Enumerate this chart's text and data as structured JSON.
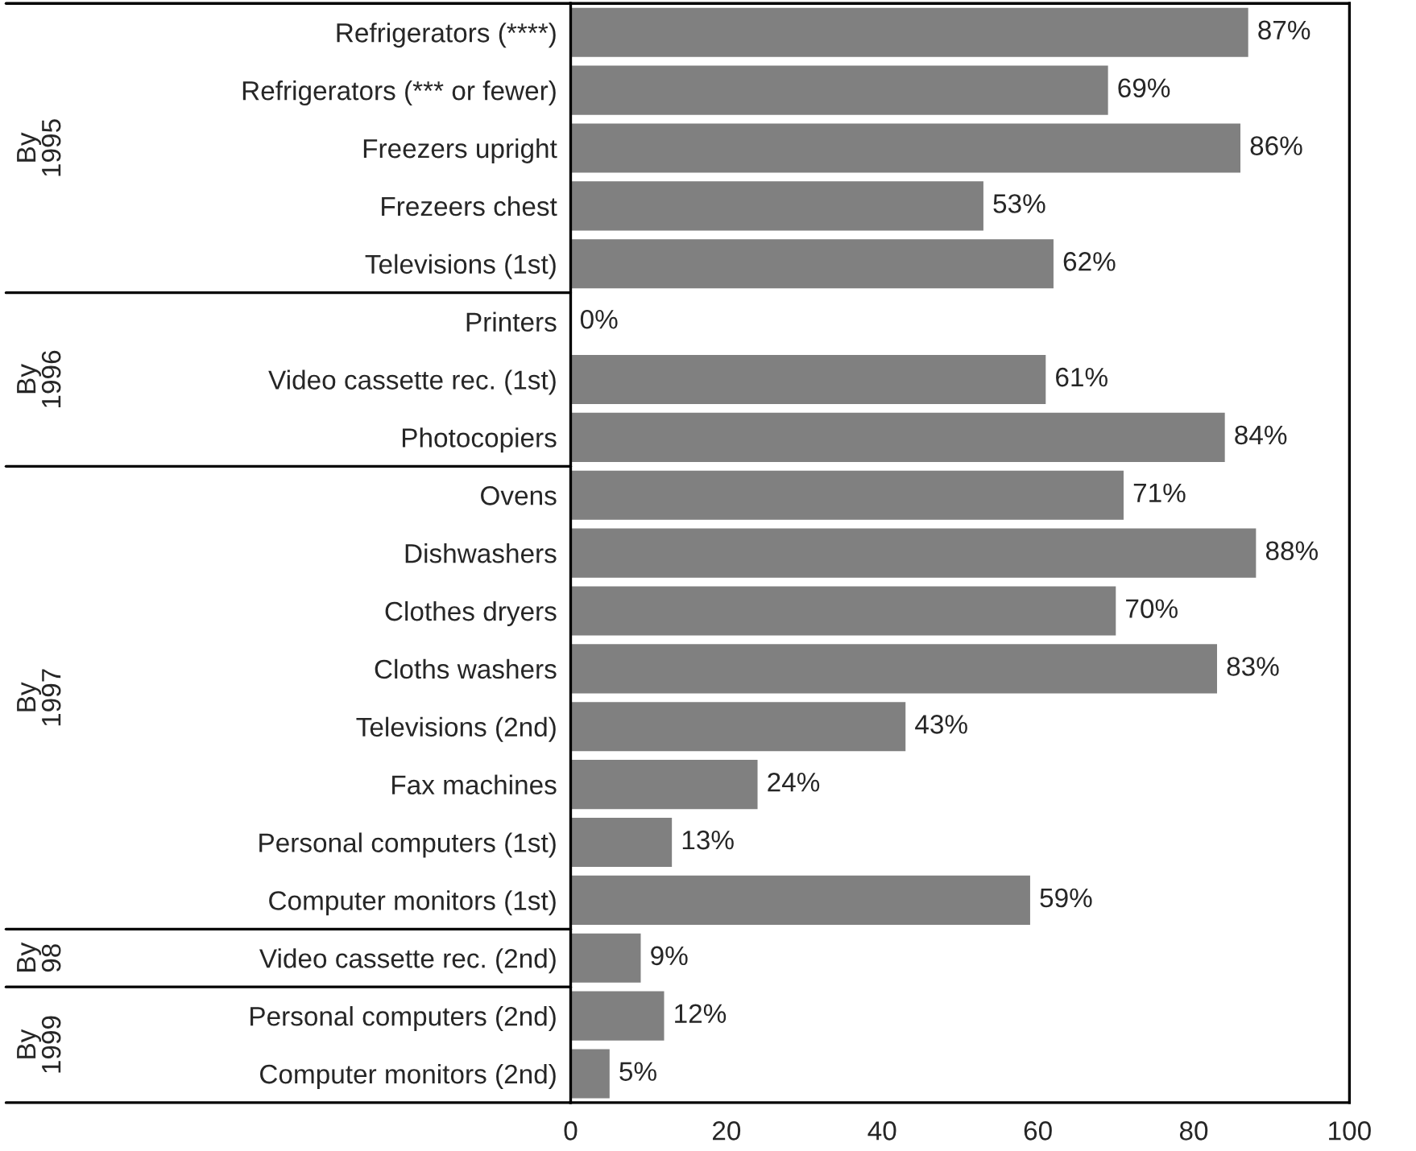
{
  "chart_data": {
    "type": "bar",
    "orientation": "horizontal",
    "categories": [
      "Refrigerators (****)",
      "Refrigerators (*** or fewer)",
      "Freezers upright",
      "Frezeers chest",
      "Televisions (1st)",
      "Printers",
      "Video cassette rec. (1st)",
      "Photocopiers",
      "Ovens",
      "Dishwashers",
      "Clothes dryers",
      "Cloths washers",
      "Televisions (2nd)",
      "Fax machines",
      "Personal computers (1st)",
      "Computer monitors (1st)",
      "Video cassette rec. (2nd)",
      "Personal computers (2nd)",
      "Computer monitors (2nd)"
    ],
    "values": [
      87,
      69,
      86,
      53,
      62,
      0,
      61,
      84,
      71,
      88,
      70,
      83,
      43,
      24,
      13,
      59,
      9,
      12,
      5
    ],
    "value_labels": [
      "87%",
      "69%",
      "86%",
      "53%",
      "62%",
      "0%",
      "61%",
      "84%",
      "71%",
      "88%",
      "70%",
      "83%",
      "43%",
      "24%",
      "13%",
      "59%",
      "9%",
      "12%",
      "5%"
    ],
    "color": "#808080",
    "xlim": [
      0,
      100
    ],
    "xticks": [
      0,
      20,
      40,
      60,
      80,
      100
    ],
    "grid": false,
    "legend": false,
    "annotations": [
      "By 1995",
      "By 1996",
      "By 1997",
      "By 98",
      "By 1999"
    ]
  }
}
